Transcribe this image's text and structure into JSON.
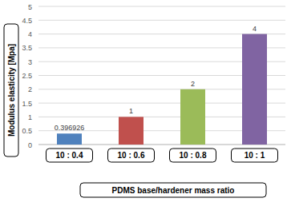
{
  "chart_data": {
    "type": "bar",
    "x_label": "PDMS base/hardener mass ratio",
    "y_label": "Modulus elasticity [Mpa]",
    "categories": [
      "10 : 0.4",
      "10 : 0.6",
      "10 : 0.8",
      "10 : 1"
    ],
    "values": [
      0.396926,
      1,
      2,
      4
    ],
    "colors": [
      "#4f81bd",
      "#c0504d",
      "#9bbb59",
      "#8064a2"
    ],
    "ylim": [
      0,
      5
    ],
    "yticks": [
      0,
      0.5,
      1,
      1.5,
      2,
      2.5,
      3,
      3.5,
      4,
      4.5,
      5
    ],
    "grid": true,
    "data_labels": true
  }
}
